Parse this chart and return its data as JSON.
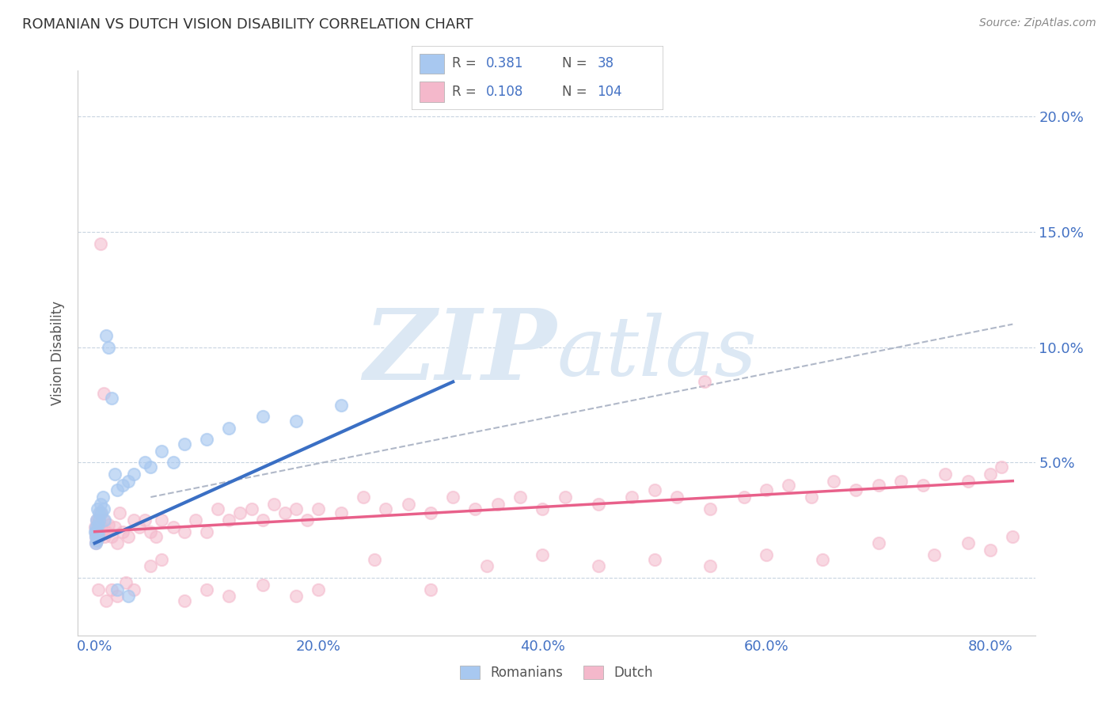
{
  "title": "ROMANIAN VS DUTCH VISION DISABILITY CORRELATION CHART",
  "source": "Source: ZipAtlas.com",
  "ylabel": "Vision Disability",
  "x_tick_labels": [
    "0.0%",
    "20.0%",
    "40.0%",
    "60.0%",
    "80.0%"
  ],
  "x_tick_values": [
    0.0,
    20.0,
    40.0,
    60.0,
    80.0
  ],
  "y_tick_labels": [
    "",
    "5.0%",
    "10.0%",
    "15.0%",
    "20.0%"
  ],
  "y_tick_values": [
    0.0,
    5.0,
    10.0,
    15.0,
    20.0
  ],
  "xlim": [
    -1.5,
    84
  ],
  "ylim": [
    -2.5,
    22
  ],
  "romanian_R": 0.381,
  "romanian_N": 38,
  "dutch_R": 0.108,
  "dutch_N": 104,
  "romanian_color": "#a8c8f0",
  "dutch_color": "#f4b8cb",
  "romanian_line_color": "#3a6fc4",
  "dutch_line_color": "#e8608a",
  "dashed_line_color": "#b0b8c8",
  "background_color": "#ffffff",
  "grid_color": "#c8d4e0",
  "watermark_zip": "ZIP",
  "watermark_atlas": "atlas",
  "watermark_color": "#dce8f4",
  "legend_value_color": "#4472c4",
  "legend_label_color": "#555555",
  "title_color": "#333333",
  "source_color": "#888888",
  "ylabel_color": "#555555",
  "xtick_color": "#4472c4",
  "ytick_right_color": "#4472c4",
  "romanian_x": [
    0.05,
    0.08,
    0.1,
    0.12,
    0.15,
    0.18,
    0.2,
    0.22,
    0.25,
    0.28,
    0.3,
    0.35,
    0.4,
    0.5,
    0.6,
    0.7,
    0.8,
    0.9,
    1.0,
    1.2,
    1.5,
    1.8,
    2.0,
    2.5,
    3.0,
    3.5,
    4.5,
    5.0,
    6.0,
    7.0,
    8.0,
    10.0,
    12.0,
    15.0,
    18.0,
    22.0,
    2.0,
    3.0
  ],
  "romanian_y": [
    2.0,
    1.5,
    1.8,
    2.2,
    1.6,
    2.5,
    2.0,
    1.8,
    3.0,
    2.3,
    1.9,
    2.8,
    2.5,
    3.2,
    2.8,
    3.5,
    3.0,
    2.5,
    10.5,
    10.0,
    7.8,
    4.5,
    3.8,
    4.0,
    4.2,
    4.5,
    5.0,
    4.8,
    5.5,
    5.0,
    5.8,
    6.0,
    6.5,
    7.0,
    6.8,
    7.5,
    -0.5,
    -0.8
  ],
  "dutch_x": [
    0.05,
    0.08,
    0.1,
    0.12,
    0.15,
    0.18,
    0.2,
    0.25,
    0.3,
    0.35,
    0.4,
    0.5,
    0.6,
    0.7,
    0.8,
    0.9,
    1.0,
    1.2,
    1.5,
    1.8,
    2.0,
    2.2,
    2.5,
    3.0,
    3.5,
    4.0,
    4.5,
    5.0,
    5.5,
    6.0,
    7.0,
    8.0,
    9.0,
    10.0,
    11.0,
    12.0,
    13.0,
    14.0,
    15.0,
    16.0,
    17.0,
    18.0,
    19.0,
    20.0,
    22.0,
    24.0,
    26.0,
    28.0,
    30.0,
    32.0,
    34.0,
    36.0,
    38.0,
    40.0,
    42.0,
    45.0,
    48.0,
    50.0,
    52.0,
    54.5,
    55.0,
    58.0,
    60.0,
    62.0,
    64.0,
    66.0,
    68.0,
    70.0,
    72.0,
    74.0,
    76.0,
    78.0,
    80.0,
    81.0,
    0.3,
    0.5,
    0.8,
    1.0,
    1.5,
    2.0,
    2.8,
    3.5,
    5.0,
    6.0,
    8.0,
    10.0,
    12.0,
    15.0,
    18.0,
    20.0,
    25.0,
    30.0,
    35.0,
    40.0,
    45.0,
    50.0,
    55.0,
    60.0,
    65.0,
    70.0,
    75.0,
    78.0,
    80.0,
    82.0
  ],
  "dutch_y": [
    2.2,
    1.5,
    1.8,
    2.0,
    1.6,
    2.5,
    2.2,
    1.9,
    2.5,
    2.0,
    1.8,
    2.8,
    2.2,
    2.0,
    2.5,
    1.8,
    2.0,
    2.3,
    1.8,
    2.2,
    1.5,
    2.8,
    2.0,
    1.8,
    2.5,
    2.2,
    2.5,
    2.0,
    1.8,
    2.5,
    2.2,
    2.0,
    2.5,
    2.0,
    3.0,
    2.5,
    2.8,
    3.0,
    2.5,
    3.2,
    2.8,
    3.0,
    2.5,
    3.0,
    2.8,
    3.5,
    3.0,
    3.2,
    2.8,
    3.5,
    3.0,
    3.2,
    3.5,
    3.0,
    3.5,
    3.2,
    3.5,
    3.8,
    3.5,
    8.5,
    3.0,
    3.5,
    3.8,
    4.0,
    3.5,
    4.2,
    3.8,
    4.0,
    4.2,
    4.0,
    4.5,
    4.2,
    4.5,
    4.8,
    -0.5,
    14.5,
    8.0,
    -1.0,
    -0.5,
    -0.8,
    -0.2,
    -0.5,
    0.5,
    0.8,
    -1.0,
    -0.5,
    -0.8,
    -0.3,
    -0.8,
    -0.5,
    0.8,
    -0.5,
    0.5,
    1.0,
    0.5,
    0.8,
    0.5,
    1.0,
    0.8,
    1.5,
    1.0,
    1.5,
    1.2,
    1.8
  ],
  "rom_line_x": [
    0,
    32
  ],
  "rom_line_y": [
    1.5,
    8.5
  ],
  "dutch_line_x": [
    0,
    82
  ],
  "dutch_line_y": [
    2.0,
    4.2
  ],
  "dash_line_x": [
    5,
    82
  ],
  "dash_line_y": [
    3.5,
    11.0
  ]
}
